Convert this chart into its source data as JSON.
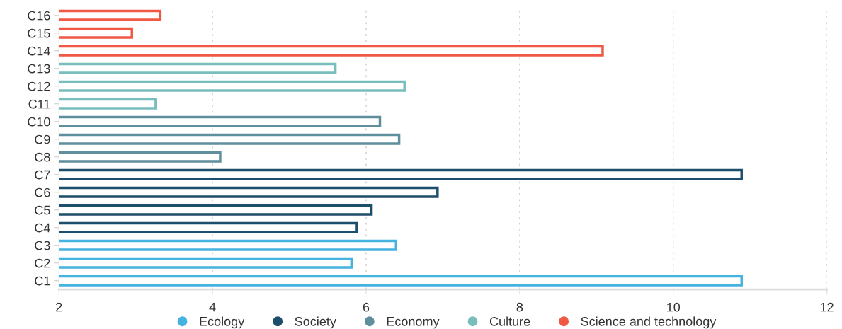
{
  "chart_data": {
    "type": "bar",
    "orientation": "horizontal",
    "stacked": true,
    "categories": [
      "C16",
      "C15",
      "C14",
      "C13",
      "C12",
      "C11",
      "C10",
      "C9",
      "C8",
      "C7",
      "C6",
      "C5",
      "C4",
      "C3",
      "C2",
      "C1"
    ],
    "series": [
      {
        "name": "Ecology",
        "color": "#45b3e0",
        "values": [
          null,
          null,
          null,
          null,
          null,
          null,
          null,
          null,
          null,
          null,
          null,
          null,
          null,
          6.39,
          5.81,
          10.89
        ]
      },
      {
        "name": "Society",
        "color": "#1d4e6b",
        "values": [
          null,
          null,
          null,
          null,
          null,
          null,
          null,
          null,
          null,
          10.89,
          6.93,
          6.07,
          5.88,
          null,
          null,
          null
        ]
      },
      {
        "name": "Economy",
        "color": "#5f8f9c",
        "values": [
          null,
          null,
          null,
          null,
          null,
          null,
          6.18,
          6.43,
          4.1,
          null,
          null,
          null,
          null,
          null,
          null,
          null
        ]
      },
      {
        "name": "Culture",
        "color": "#79bdbd",
        "values": [
          null,
          null,
          null,
          5.6,
          6.5,
          3.26,
          null,
          null,
          null,
          null,
          null,
          null,
          null,
          null,
          null,
          null
        ]
      },
      {
        "name": "Science and technology",
        "color": "#f05a44",
        "values": [
          3.32,
          2.95,
          9.08,
          null,
          null,
          null,
          null,
          null,
          null,
          null,
          null,
          null,
          null,
          null,
          null,
          null
        ]
      }
    ],
    "xlim": [
      2,
      12
    ],
    "xticks": [
      2,
      4,
      6,
      8,
      10,
      12
    ],
    "grid": "x",
    "legend": "bottom"
  }
}
